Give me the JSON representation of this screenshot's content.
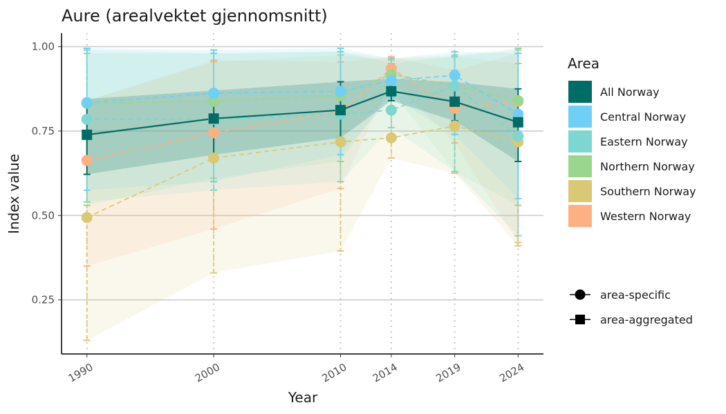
{
  "chart_data": {
    "type": "line",
    "title": "Aure (arealvektet gjennomsnitt)",
    "xlabel": "Year",
    "ylabel": "Index value",
    "x": [
      1990,
      2000,
      2010,
      2014,
      2019,
      2024
    ],
    "x_tick_labels": [
      "1990",
      "2000",
      "2010",
      "2014",
      "2019",
      "2024"
    ],
    "xlim": [
      1988,
      2026
    ],
    "ylim": [
      0.09,
      1.04
    ],
    "y_ticks": [
      0.25,
      0.5,
      0.75,
      1.0
    ],
    "y_tick_labels": [
      "0.25",
      "0.50",
      "0.75",
      "1.00"
    ],
    "grid": "horizontal major lines; dotted vertical lines at data years",
    "legend_position": "right",
    "legend_title": "Area",
    "series": [
      {
        "name": "Western Norway",
        "color": "#FDB183",
        "shape": "circle",
        "linestyle": "dashed",
        "values": [
          0.663,
          0.745,
          0.808,
          0.935,
          0.818,
          0.838
        ],
        "lower": [
          0.35,
          0.46,
          0.58,
          0.9,
          0.715,
          0.42
        ],
        "upper": [
          0.84,
          0.96,
          0.955,
          0.97,
          0.93,
          0.98
        ]
      },
      {
        "name": "Southern Norway",
        "color": "#D9C874",
        "shape": "circle",
        "linestyle": "dashed",
        "values": [
          0.494,
          0.67,
          0.718,
          0.73,
          0.765,
          0.718
        ],
        "lower": [
          0.13,
          0.33,
          0.395,
          0.67,
          0.625,
          0.41
        ],
        "upper": [
          0.84,
          0.955,
          0.975,
          0.96,
          0.97,
          0.95
        ]
      },
      {
        "name": "Northern Norway",
        "color": "#9BD68F",
        "shape": "circle",
        "linestyle": "dashed",
        "values": [
          0.832,
          0.838,
          0.855,
          0.918,
          0.884,
          0.84
        ],
        "lower": [
          0.53,
          0.61,
          0.66,
          0.87,
          0.63,
          0.53
        ],
        "upper": [
          0.98,
          0.98,
          0.985,
          0.965,
          0.975,
          0.995
        ]
      },
      {
        "name": "Eastern Norway",
        "color": "#7DD6CF",
        "shape": "circle",
        "linestyle": "dashed",
        "values": [
          0.785,
          0.785,
          0.8,
          0.812,
          0.884,
          0.735
        ],
        "lower": [
          0.54,
          0.575,
          0.6,
          0.76,
          0.63,
          0.44
        ],
        "upper": [
          0.99,
          0.98,
          0.985,
          0.95,
          0.97,
          0.99
        ]
      },
      {
        "name": "Central Norway",
        "color": "#6FCFF6",
        "shape": "circle",
        "linestyle": "dashed",
        "values": [
          0.834,
          0.862,
          0.868,
          0.9,
          0.915,
          0.8
        ],
        "lower": [
          0.575,
          0.6,
          0.68,
          0.85,
          0.74,
          0.55
        ],
        "upper": [
          0.995,
          0.99,
          0.995,
          0.965,
          0.985,
          0.98
        ]
      },
      {
        "name": "All Norway",
        "color": "#006C66",
        "shape": "square",
        "linestyle": "solid",
        "values": [
          0.739,
          0.787,
          0.812,
          0.868,
          0.837,
          0.776
        ],
        "lower": [
          0.622,
          0.68,
          0.73,
          0.84,
          0.78,
          0.66
        ],
        "upper": [
          0.845,
          0.87,
          0.896,
          0.905,
          0.895,
          0.875
        ]
      }
    ],
    "legend_order": [
      "All Norway",
      "Central Norway",
      "Eastern Norway",
      "Northern Norway",
      "Southern Norway",
      "Western Norway"
    ],
    "shape_legend": [
      {
        "label": "area-specific",
        "shape": "circle"
      },
      {
        "label": "area-aggregated",
        "shape": "square"
      }
    ]
  }
}
